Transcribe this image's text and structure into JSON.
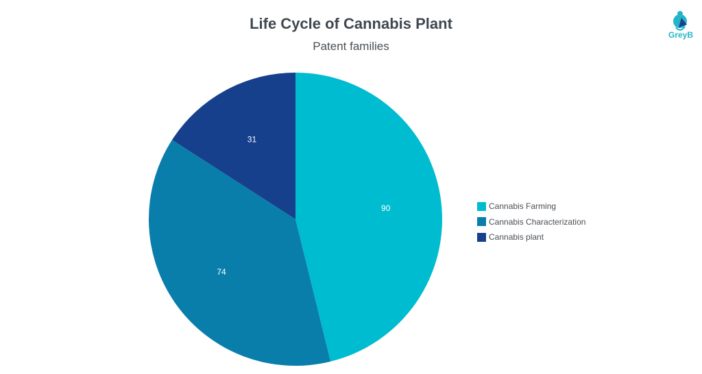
{
  "chart_data": {
    "type": "pie",
    "title": "Life Cycle of Cannabis Plant",
    "subtitle": "Patent families",
    "categories": [
      "Cannabis Farming",
      "Cannabis Characterization",
      "Cannabis plant"
    ],
    "values": [
      90,
      74,
      31
    ],
    "colors": [
      "#00bcd0",
      "#0a7eab",
      "#163f8c"
    ],
    "legend": "right"
  },
  "logo": {
    "text": "GreyB"
  }
}
